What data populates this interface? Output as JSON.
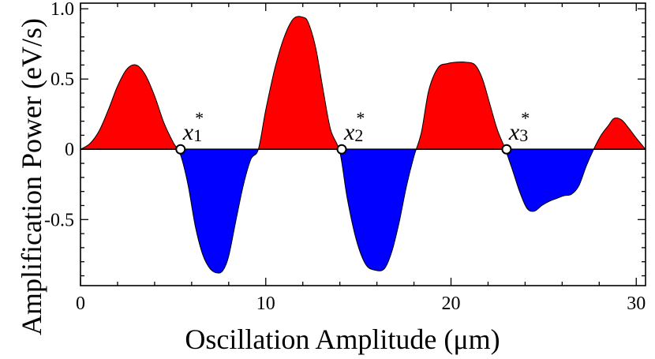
{
  "chart_data": {
    "type": "area",
    "title": "",
    "xlabel": "Oscillation Amplitude (μm)",
    "ylabel": "Amplification Power (eV/s)",
    "xlim": [
      0,
      30.5
    ],
    "ylim": [
      -0.97,
      1.04
    ],
    "x_ticks": [
      0,
      10,
      20,
      30
    ],
    "x_tick_labels": [
      "0",
      "10",
      "20",
      "30"
    ],
    "y_ticks": [
      1.0,
      0.5,
      0,
      -0.5
    ],
    "y_tick_labels": [
      "1.0",
      "0.5",
      "0",
      "-0.5"
    ],
    "grid": false,
    "fill_colors": {
      "positive": "#ff0000",
      "negative": "#0000ff"
    },
    "series": [
      {
        "x": [
          0,
          0.5,
          1,
          1.5,
          2,
          2.5,
          3,
          3.5,
          4,
          4.5,
          5,
          5.4,
          5.8,
          6.2,
          6.6,
          7,
          7.4,
          7.7,
          8,
          8.4,
          8.8,
          9.2,
          9.6,
          10,
          10.5,
          11,
          11.5,
          12,
          12.3,
          12.7,
          13.1,
          13.5,
          14,
          14.4,
          14.9,
          15.4,
          15.9,
          16.4,
          16.8,
          17.2,
          17.6,
          18,
          18.4,
          18.8,
          19.3,
          19.8,
          20.3,
          20.8,
          21.3,
          21.7,
          22.1,
          22.5,
          22.9,
          23.3,
          23.7,
          24.1,
          24.5,
          24.9,
          25.3,
          25.7,
          26.1,
          26.5,
          26.9,
          27.3,
          27.7,
          28.1,
          28.5,
          28.8,
          29.2,
          29.6,
          30,
          30.5
        ],
        "y": [
          0.0,
          0.04,
          0.13,
          0.28,
          0.45,
          0.57,
          0.6,
          0.53,
          0.38,
          0.19,
          0.05,
          -0.04,
          -0.25,
          -0.55,
          -0.75,
          -0.85,
          -0.88,
          -0.86,
          -0.76,
          -0.5,
          -0.25,
          -0.07,
          0.0,
          0.28,
          0.58,
          0.8,
          0.93,
          0.94,
          0.9,
          0.72,
          0.42,
          0.14,
          -0.02,
          -0.35,
          -0.65,
          -0.82,
          -0.86,
          -0.85,
          -0.73,
          -0.52,
          -0.26,
          -0.05,
          0.12,
          0.42,
          0.58,
          0.61,
          0.62,
          0.62,
          0.6,
          0.5,
          0.32,
          0.14,
          0.01,
          -0.14,
          -0.3,
          -0.42,
          -0.44,
          -0.4,
          -0.37,
          -0.35,
          -0.33,
          -0.32,
          -0.26,
          -0.12,
          0.0,
          0.1,
          0.17,
          0.22,
          0.21,
          0.15,
          0.08,
          0.0
        ]
      }
    ],
    "annotations": [
      {
        "base": "x",
        "sub": "1",
        "sup": "*",
        "x": 5.4,
        "y": 0
      },
      {
        "base": "x",
        "sub": "2",
        "sup": "*",
        "x": 14.1,
        "y": 0
      },
      {
        "base": "x",
        "sub": "3",
        "sup": "*",
        "x": 23.0,
        "y": 0
      }
    ]
  }
}
